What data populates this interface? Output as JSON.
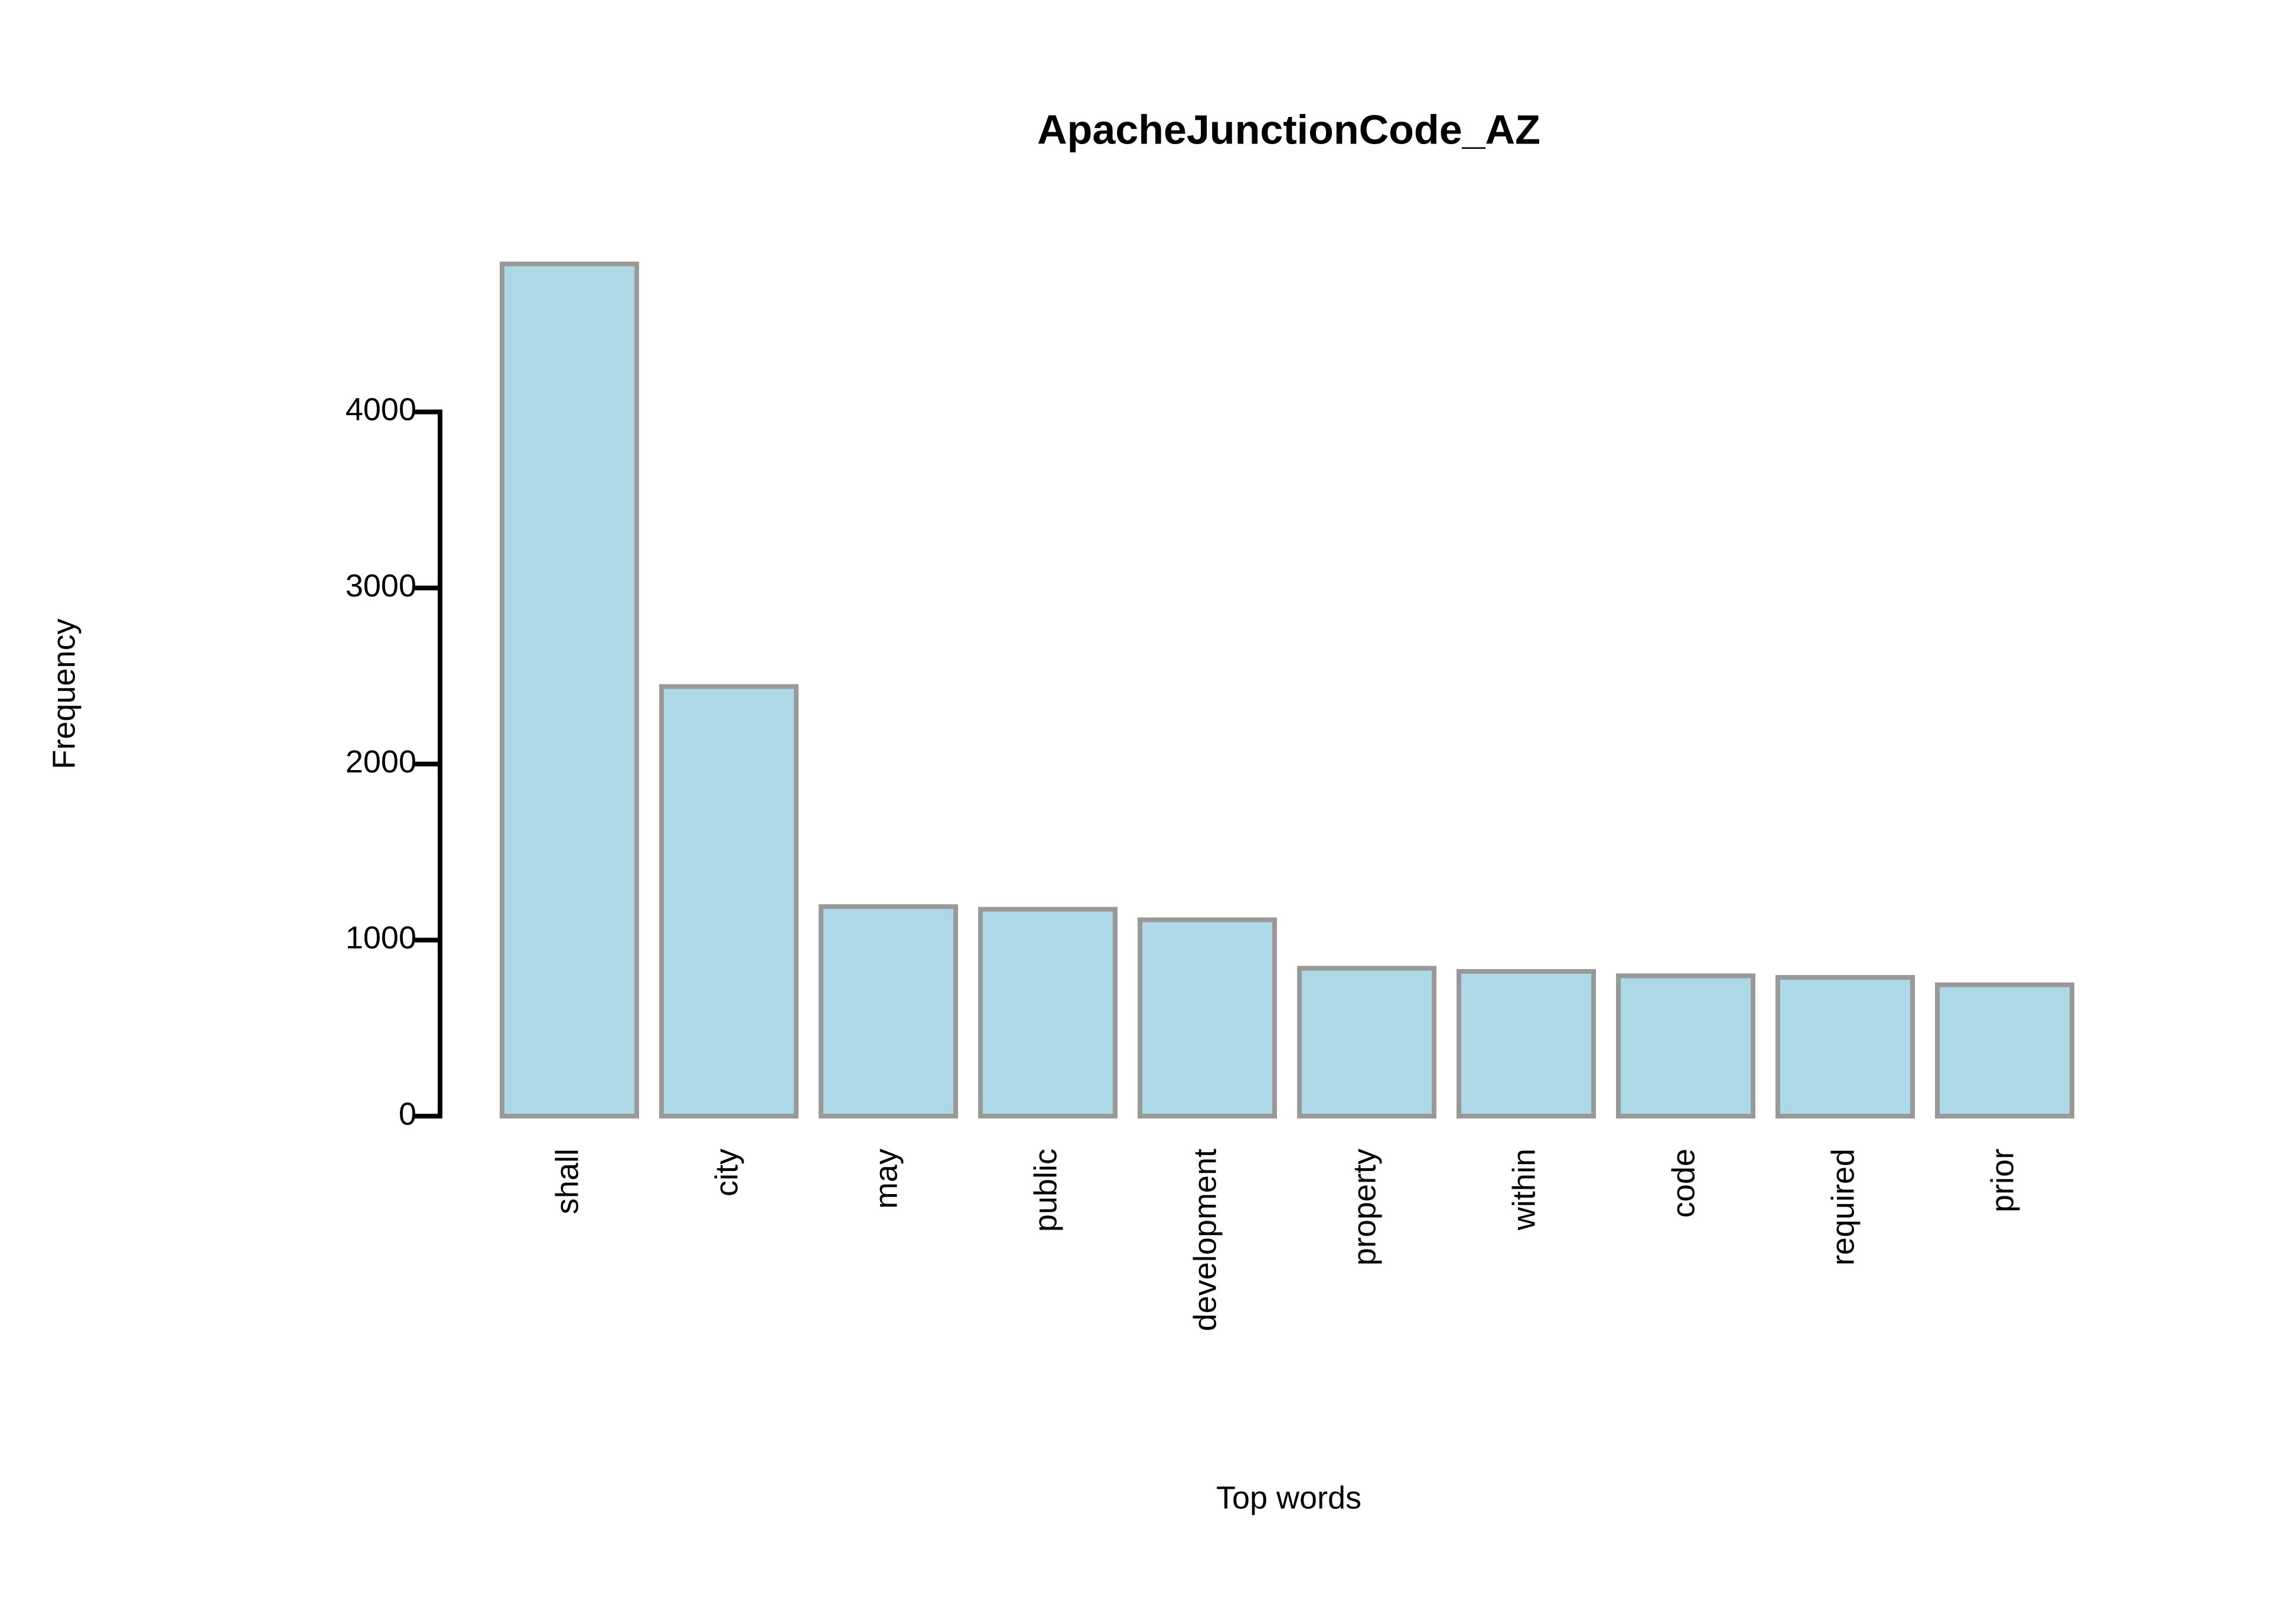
{
  "chart_data": {
    "type": "bar",
    "title": "ApacheJunctionCode_AZ",
    "x_label": "Top words",
    "y_label": "Frequency",
    "categories": [
      "shall",
      "city",
      "may",
      "public",
      "development",
      "property",
      "within",
      "code",
      "required",
      "prior"
    ],
    "values": [
      4840,
      2440,
      1190,
      1175,
      1115,
      840,
      822,
      797,
      788,
      746
    ],
    "color": "#add8e6",
    "edge_color": "#999999",
    "ylim": [
      0,
      4840
    ],
    "yticks": [
      0,
      1000,
      2000,
      3000,
      4000
    ],
    "grid": false
  }
}
